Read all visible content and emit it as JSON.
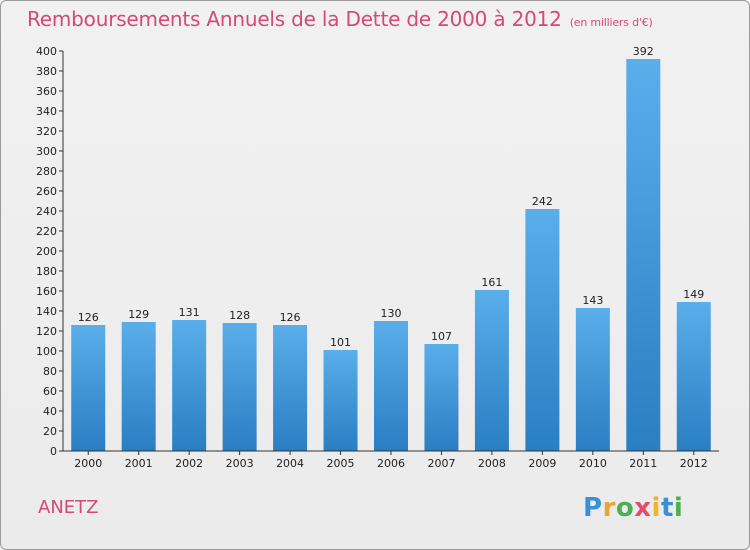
{
  "chart_data": {
    "type": "bar",
    "title": "Remboursements Annuels de la Dette de 2000 à 2012",
    "subtitle": "(en milliers d'€)",
    "categories": [
      "2000",
      "2001",
      "2002",
      "2003",
      "2004",
      "2005",
      "2006",
      "2007",
      "2008",
      "2009",
      "2010",
      "2011",
      "2012"
    ],
    "values": [
      126,
      129,
      131,
      128,
      126,
      101,
      130,
      107,
      161,
      242,
      143,
      392,
      149
    ],
    "ylim": [
      0,
      400
    ],
    "ytick_step": 20,
    "grid": false,
    "bar_color": "#3b94d9"
  },
  "commune": "ANETZ",
  "logo": {
    "letters": [
      {
        "ch": "P",
        "color": "#3a8fd6"
      },
      {
        "ch": "r",
        "color": "#e8a531"
      },
      {
        "ch": "o",
        "color": "#4caf50"
      },
      {
        "ch": "x",
        "color": "#e84a6e"
      },
      {
        "ch": "i",
        "color": "#f0b429"
      },
      {
        "ch": "t",
        "color": "#3a8fd6"
      },
      {
        "ch": "i",
        "color": "#4caf50"
      }
    ]
  }
}
